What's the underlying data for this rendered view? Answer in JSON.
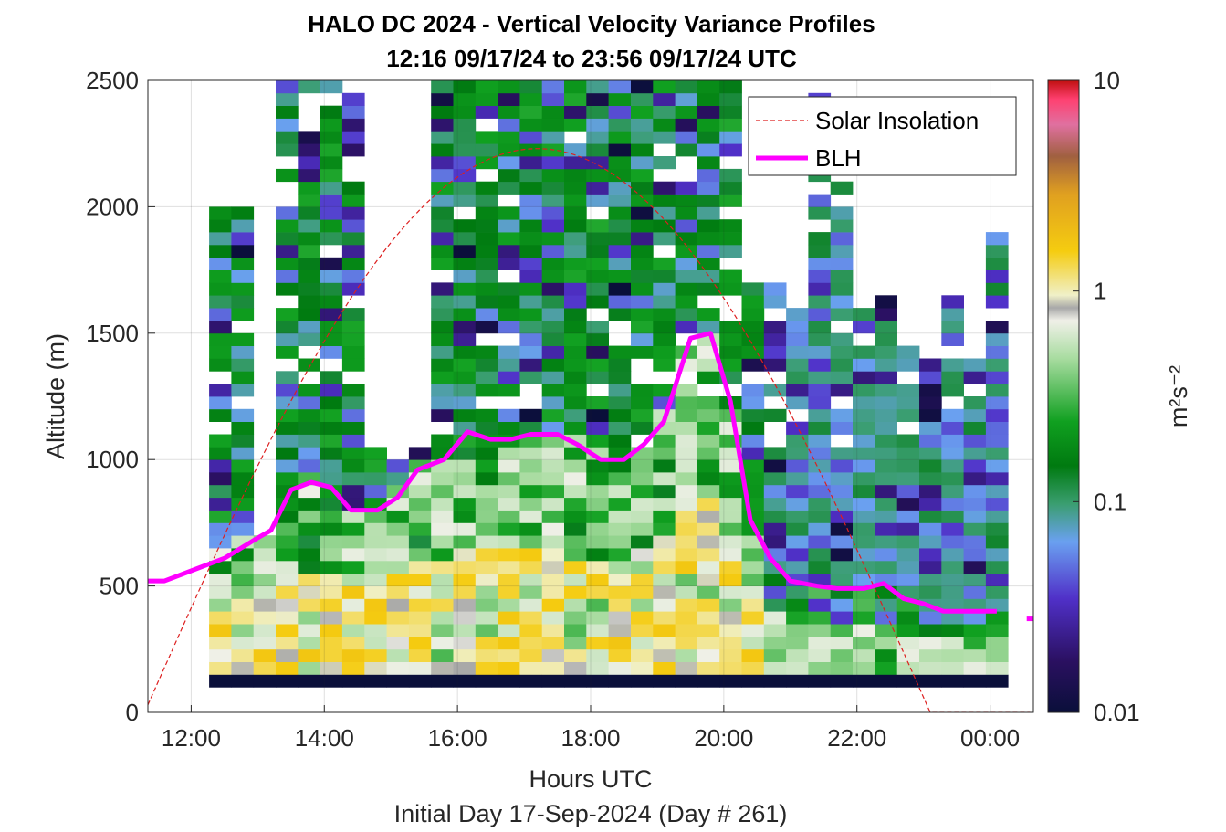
{
  "chart_data": {
    "type": "heatmap",
    "title": "HALO DC 2024 - Vertical Velocity Variance Profiles",
    "subtitle": "12:16 09/17/24 to 23:56 09/17/24  UTC",
    "xlabel": "Hours UTC",
    "xlabel2": "Initial Day 17-Sep-2024 (Day # 261)",
    "ylabel": "Altitude (m)",
    "colorbar_label": "m²s⁻²",
    "colorbar_scale": "log",
    "colorbar_range": [
      0.01,
      10
    ],
    "colorbar_ticks": [
      "0.01",
      "0.1",
      "1",
      "10"
    ],
    "xlim_hours": [
      11.35,
      24.65
    ],
    "ylim": [
      0,
      2500
    ],
    "x_ticks": [
      {
        "hour": 12,
        "label": "12:00"
      },
      {
        "hour": 14,
        "label": "14:00"
      },
      {
        "hour": 16,
        "label": "16:00"
      },
      {
        "hour": 18,
        "label": "18:00"
      },
      {
        "hour": 20,
        "label": "20:00"
      },
      {
        "hour": 22,
        "label": "22:00"
      },
      {
        "hour": 24,
        "label": "00:00"
      }
    ],
    "y_ticks": [
      0,
      500,
      1000,
      1500,
      2000,
      2500
    ],
    "grid": true,
    "legend_position": "top-right",
    "legend": [
      "Solar Insolation",
      "BLH"
    ],
    "colors": {
      "solar": "#dd1f1f",
      "blh": "#ff00ff",
      "no_data": "#ffffff"
    },
    "heatmap": {
      "time_start_hour": 12.27,
      "time_step_hour": 0.3333,
      "num_columns": 36,
      "altitude_bottom_m": 100,
      "altitude_step_m": 50,
      "first_row_value": 0.01,
      "sample_values_by_height_band": [
        {
          "altitude_m": [
            100,
            400
          ],
          "typical_value": 0.6
        },
        {
          "altitude_m": [
            400,
            1000
          ],
          "typical_value": 0.3
        },
        {
          "altitude_m": [
            1000,
            2500
          ],
          "typical_value": 0.08
        }
      ]
    },
    "series": [
      {
        "name": "BLH",
        "x_hours": [
          11.35,
          11.6,
          12.0,
          12.5,
          13.0,
          13.2,
          13.5,
          13.8,
          14.1,
          14.4,
          14.8,
          15.1,
          15.4,
          15.8,
          16.15,
          16.5,
          16.8,
          17.1,
          17.5,
          17.8,
          18.15,
          18.5,
          18.8,
          19.1,
          19.5,
          19.8,
          20.1,
          20.4,
          20.7,
          21.0,
          21.4,
          21.7,
          22.1,
          22.4,
          22.7,
          23.0,
          23.3,
          23.6,
          23.9,
          24.1
        ],
        "y_m": [
          520,
          520,
          560,
          610,
          690,
          720,
          880,
          910,
          890,
          800,
          800,
          850,
          960,
          1000,
          1110,
          1080,
          1080,
          1100,
          1100,
          1060,
          1000,
          1000,
          1060,
          1150,
          1480,
          1500,
          1230,
          760,
          610,
          520,
          500,
          490,
          490,
          510,
          450,
          430,
          400,
          400,
          400,
          400
        ]
      },
      {
        "name": "Solar Insolation",
        "style": "dashed",
        "peak_hour": 17.2,
        "zero_hour": 23.1,
        "peak_altitude_m": 2230
      }
    ]
  }
}
